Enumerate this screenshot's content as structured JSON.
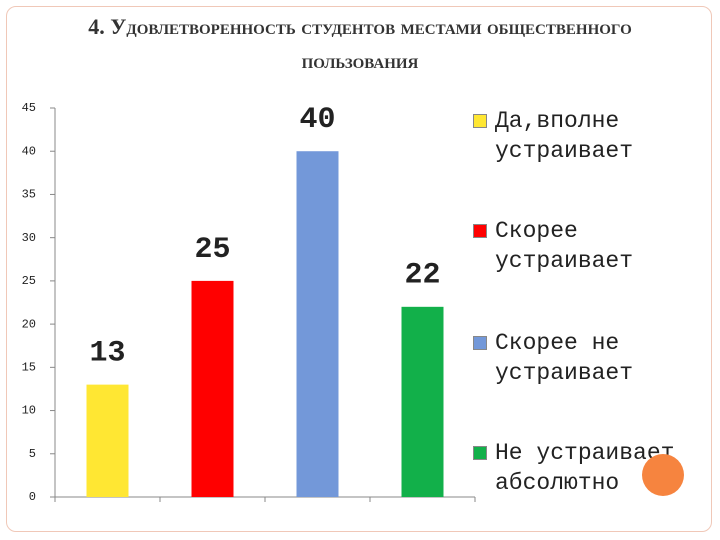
{
  "chart_data": {
    "type": "bar",
    "title": "4. Удовлетворенность студентов местами общественного пользования",
    "categories": [
      null
    ],
    "series": [
      {
        "name": "Да,вполне устраивает",
        "color": "#ffe733",
        "values": [
          13
        ]
      },
      {
        "name": "Скорее устраивает",
        "color": "#ff0000",
        "values": [
          25
        ]
      },
      {
        "name": "Скорее не устраивает",
        "color": "#7398d9",
        "values": [
          40
        ]
      },
      {
        "name": "Не устраивает абсолютно",
        "color": "#12b04a",
        "values": [
          22
        ]
      }
    ],
    "ylim": [
      0,
      45
    ],
    "yticks": [
      0,
      5,
      10,
      15,
      20,
      25,
      30,
      35,
      40,
      45
    ],
    "grid": false,
    "legend": "right"
  }
}
